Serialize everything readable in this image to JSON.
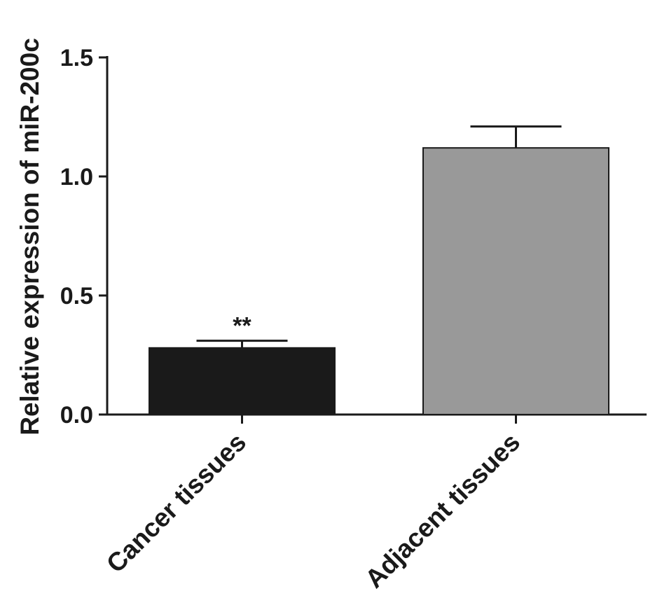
{
  "chart_data": {
    "type": "bar",
    "title": "",
    "xlabel": "",
    "ylabel": "Relative expression of miR-200c",
    "ylim": [
      0,
      1.5
    ],
    "yticks": [
      0.0,
      0.5,
      1.0,
      1.5
    ],
    "ytick_labels": [
      "0.0",
      "0.5",
      "1.0",
      "1.5"
    ],
    "categories": [
      "Cancer tissues",
      "Adjacent tissues"
    ],
    "values": [
      0.28,
      1.12
    ],
    "error": [
      0.03,
      0.09
    ],
    "bar_colors": [
      "#1a1a1a",
      "#999999"
    ],
    "annotations": [
      {
        "category": "Cancer tissues",
        "text": "**"
      }
    ],
    "grid": false,
    "legend": "none"
  }
}
